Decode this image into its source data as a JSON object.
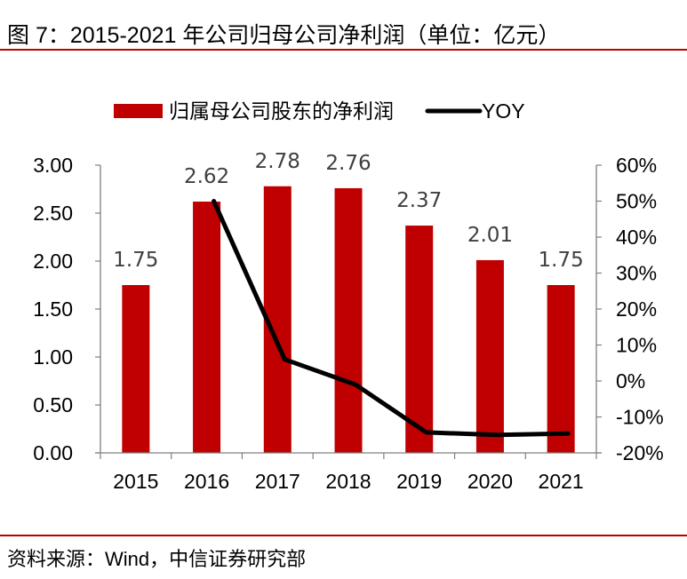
{
  "header": {
    "title": "图 7：2015-2021 年公司归母公司净利润（单位：亿元）"
  },
  "footer": {
    "source": "资料来源：Wind，中信证券研究部"
  },
  "colors": {
    "bar": "#c00000",
    "line": "#000000",
    "rule": "#c00000",
    "axis": "#808080",
    "data_label": "#404040"
  },
  "chart_data": {
    "type": "bar",
    "title": "",
    "categories": [
      "2015",
      "2016",
      "2017",
      "2018",
      "2019",
      "2020",
      "2021"
    ],
    "series": [
      {
        "name": "归属母公司股东的净利润",
        "type": "bar",
        "axis": "left",
        "values": [
          1.75,
          2.62,
          2.78,
          2.76,
          2.37,
          2.01,
          1.75
        ],
        "labels": [
          "1.75",
          "2.62",
          "2.78",
          "2.76",
          "2.37",
          "2.01",
          "1.75"
        ]
      },
      {
        "name": "YOY",
        "type": "line",
        "axis": "right",
        "values": [
          null,
          50,
          6,
          -1,
          -14.3,
          -15,
          -14.6
        ]
      }
    ],
    "left_axis": {
      "ylim": [
        0,
        3
      ],
      "ticks": [
        0,
        0.5,
        1,
        1.5,
        2,
        2.5,
        3
      ],
      "tick_labels": [
        "0.00",
        "0.50",
        "1.00",
        "1.50",
        "2.00",
        "2.50",
        "3.00"
      ]
    },
    "right_axis": {
      "ylim": [
        -20,
        60
      ],
      "ticks": [
        -20,
        -10,
        0,
        10,
        20,
        30,
        40,
        50,
        60
      ],
      "tick_labels": [
        "-20%",
        "-10%",
        "0%",
        "10%",
        "20%",
        "30%",
        "40%",
        "50%",
        "60%"
      ]
    },
    "xlabel": "",
    "ylabel": "",
    "grid": false,
    "legend": {
      "placement": "top",
      "entries": [
        "归属母公司股东的净利润",
        "YOY"
      ]
    }
  }
}
